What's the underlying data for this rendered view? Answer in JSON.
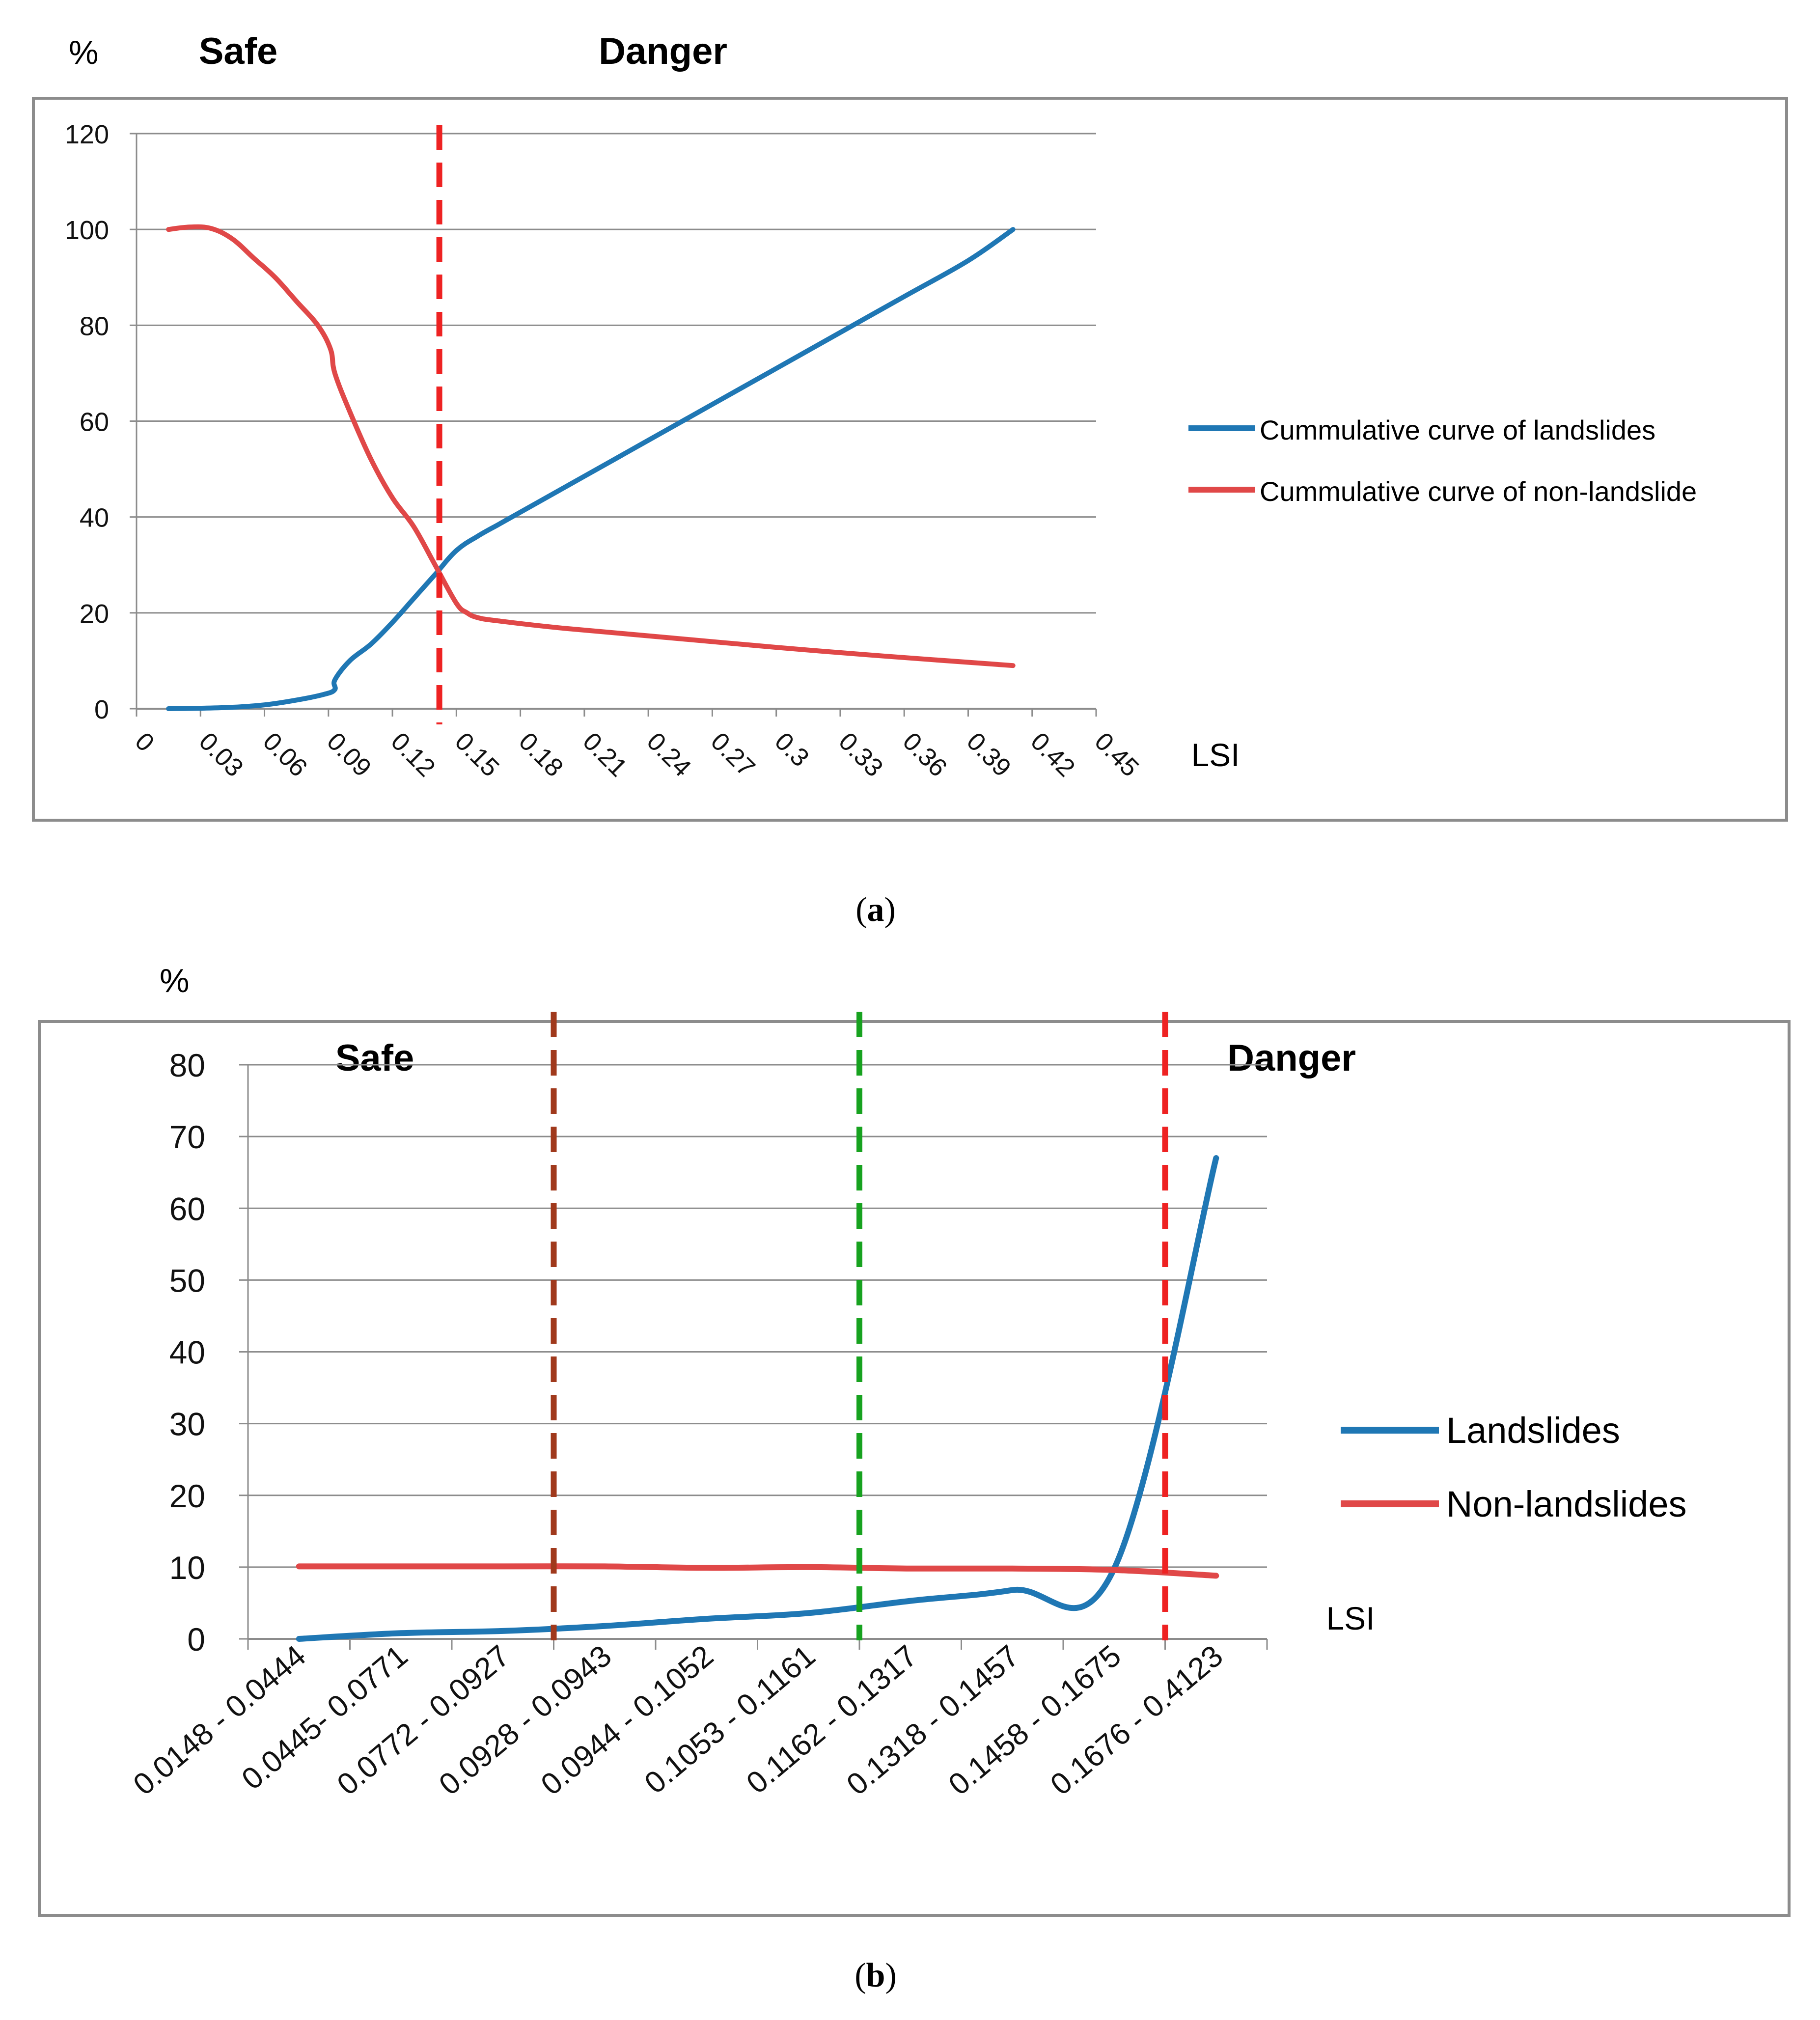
{
  "chart_data": [
    {
      "panel": "(a)",
      "caption_letter": "a",
      "type": "line",
      "title": "",
      "unit_label": "%",
      "zone_labels": {
        "safe": "Safe",
        "danger": "Danger"
      },
      "xlabel": "LSI",
      "ylabel": "%",
      "xlim": [
        0,
        0.45
      ],
      "ylim": [
        0,
        120
      ],
      "x_ticks": [
        "0",
        "0.03",
        "0.06",
        "0.09",
        "0.12",
        "0.15",
        "0.18",
        "0.21",
        "0.24",
        "0.27",
        "0.3",
        "0.33",
        "0.36",
        "0.39",
        "0.42",
        "0.45"
      ],
      "y_ticks": [
        "0",
        "20",
        "40",
        "60",
        "80",
        "100",
        "120"
      ],
      "grid": true,
      "legend_position": "right",
      "threshold_lines": [
        {
          "x": 0.142,
          "color": "#ee2222",
          "style": "dashed"
        }
      ],
      "series": [
        {
          "name": "Cummulative curve of landslides",
          "color": "#1f77b4",
          "x": [
            0.015,
            0.03,
            0.045,
            0.06,
            0.075,
            0.088,
            0.093,
            0.093,
            0.1,
            0.11,
            0.12,
            0.13,
            0.14,
            0.15,
            0.16,
            0.17,
            0.18,
            0.21,
            0.24,
            0.27,
            0.3,
            0.33,
            0.36,
            0.39,
            0.411
          ],
          "values": [
            0,
            0.1,
            0.3,
            0.8,
            1.8,
            3.0,
            4.0,
            6.0,
            10.0,
            13.5,
            18.0,
            23.0,
            28.0,
            33.0,
            36.0,
            38.5,
            41.0,
            48.5,
            56.0,
            63.5,
            71.0,
            78.5,
            86.0,
            93.5,
            100.0
          ]
        },
        {
          "name": "Cummulative curve of non-landslide",
          "color": "#e04848",
          "x": [
            0.015,
            0.025,
            0.035,
            0.045,
            0.055,
            0.065,
            0.075,
            0.085,
            0.091,
            0.093,
            0.1,
            0.11,
            0.12,
            0.13,
            0.14,
            0.15,
            0.155,
            0.16,
            0.17,
            0.2,
            0.25,
            0.3,
            0.35,
            0.411
          ],
          "values": [
            100,
            100.5,
            100.2,
            98,
            94,
            90,
            85,
            80,
            75,
            70,
            62,
            52,
            44,
            38,
            30,
            22,
            20,
            19,
            18.3,
            16.8,
            14.8,
            12.8,
            11,
            9
          ]
        }
      ]
    },
    {
      "panel": "(b)",
      "caption_letter": "b",
      "type": "line",
      "title": "",
      "unit_label": "%",
      "zone_labels": {
        "safe": "Safe",
        "danger": "Danger"
      },
      "xlabel": "LSI",
      "ylabel": "%",
      "ylim": [
        0,
        80
      ],
      "y_ticks": [
        "0",
        "10",
        "20",
        "30",
        "40",
        "50",
        "60",
        "70",
        "80"
      ],
      "categories": [
        "0.0148 - 0.0444",
        "0.0445- 0.0771",
        "0.0772 - 0.0927",
        "0.0928 - 0.0943",
        "0.0944 - 0.1052",
        "0.1053 - 0.1161",
        "0.1162 - 0.1317",
        "0.1318 - 0.1457",
        "0.1458 - 0.1675",
        "0.1676 - 0.4123"
      ],
      "grid": true,
      "legend_position": "right",
      "threshold_lines": [
        {
          "category_boundary": 2.5,
          "color": "#a0391c",
          "style": "dashed"
        },
        {
          "category_boundary": 5.5,
          "color": "#17a21f",
          "style": "dashed"
        },
        {
          "category_boundary": 8.5,
          "color": "#ee2222",
          "style": "dashed"
        }
      ],
      "series": [
        {
          "name": "Landslides",
          "color": "#1f77b4",
          "values": [
            0,
            0.8,
            1.1,
            1.8,
            2.8,
            3.6,
            5.3,
            6.8,
            9.8,
            67
          ]
        },
        {
          "name": "Non-landslides",
          "color": "#e04848",
          "values": [
            10.1,
            10.1,
            10.1,
            10.1,
            9.9,
            10.0,
            9.8,
            9.8,
            9.6,
            8.8
          ]
        }
      ]
    }
  ]
}
